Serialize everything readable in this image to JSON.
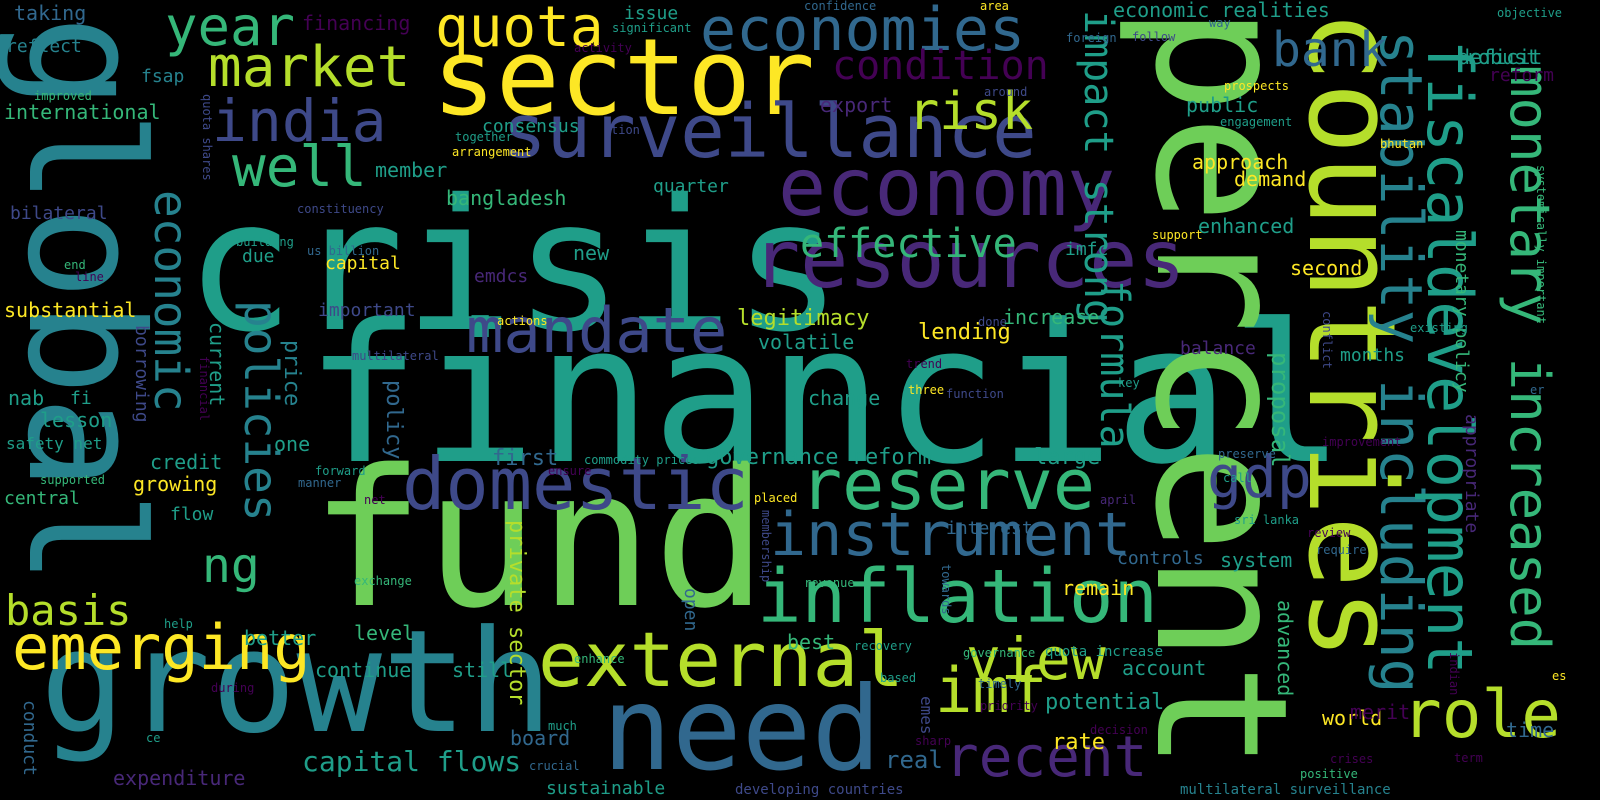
{
  "palette": {
    "background": "#000000",
    "yellow": "#fde725",
    "lime": "#b5de2b",
    "green": "#6ece58",
    "teal_green": "#35b779",
    "teal": "#1f9e89",
    "cyan": "#26828e",
    "blue": "#31688e",
    "indigo": "#3e4989",
    "purple": "#482878",
    "dark_purple": "#440154"
  },
  "words": [
    "global",
    "crisis",
    "financial",
    "fund",
    "percent",
    "sector",
    "countries",
    "growth",
    "need",
    "resources",
    "economy",
    "surveillance",
    "domestic",
    "external",
    "reserve",
    "inflation",
    "instrument",
    "mandate",
    "economies",
    "market",
    "india",
    "quota",
    "well",
    "year",
    "stability including",
    "fiscaldevelopment",
    "monetary increased",
    "role",
    "bank",
    "risk",
    "imf",
    "view",
    "recent",
    "gdp",
    "emerging",
    "policies",
    "economic",
    "impact strong",
    "formula",
    "condition",
    "effective",
    "basis",
    "ng",
    "capital flows",
    "board",
    "private sector",
    "legitimacy",
    "governance reform",
    "lending",
    "potential",
    "rate",
    "real",
    "volatile",
    "change",
    "increase",
    "first",
    "large",
    "interest",
    "system",
    "controls",
    "remain",
    "account",
    "world",
    "merit",
    "time",
    "months",
    "proposal",
    "advanced",
    "second",
    "public",
    "approach",
    "demand",
    "enhanced",
    "imfc",
    "economic realities",
    "deficit",
    "robust",
    "reform",
    "consensus",
    "quarter",
    "bangladesh",
    "member",
    "new",
    "capital",
    "due",
    "important",
    "current",
    "price",
    "policy",
    "credit",
    "growing",
    "flow",
    "one",
    "lesson",
    "nab",
    "fi",
    "safety net",
    "central",
    "borrowing",
    "substantial",
    "international",
    "reflect",
    "taking",
    "fsap",
    "financing",
    "issue",
    "confidence",
    "area",
    "objective",
    "way",
    "follow",
    "foreign",
    "significant",
    "activity",
    "bilateral",
    "end",
    "line",
    "emdcs",
    "us billion",
    "actions",
    "done",
    "balance",
    "key",
    "three",
    "function",
    "trend",
    "supported",
    "manner",
    "forward",
    "commodity prices",
    "ensure",
    "placed",
    "net",
    "exchange",
    "membership",
    "revenue",
    "towards",
    "recovery",
    "governance",
    "quota increase",
    "open",
    "still",
    "better",
    "level",
    "continue",
    "help",
    "enhance",
    "during",
    "much",
    "crucial",
    "sharp",
    "timely",
    "priority",
    "emes",
    "based",
    "decision",
    "expenditure",
    "sustainable",
    "developing countries",
    "multilateral surveillance",
    "positive",
    "crises",
    "term",
    "indian",
    "conduct",
    "ce",
    "improvement",
    "require",
    "review",
    "sri lanka",
    "april",
    "preserve",
    "call",
    "appropriate",
    "monetary policy",
    "export",
    "around",
    "together",
    "arrangement",
    "tion",
    "engagement",
    "prospects",
    "bhutan",
    "improved",
    "quota shares",
    "constituency",
    "building",
    "multilateral",
    "support",
    "conflict",
    "existing",
    "systemically important",
    "er",
    "es",
    "financial",
    "best"
  ]
}
